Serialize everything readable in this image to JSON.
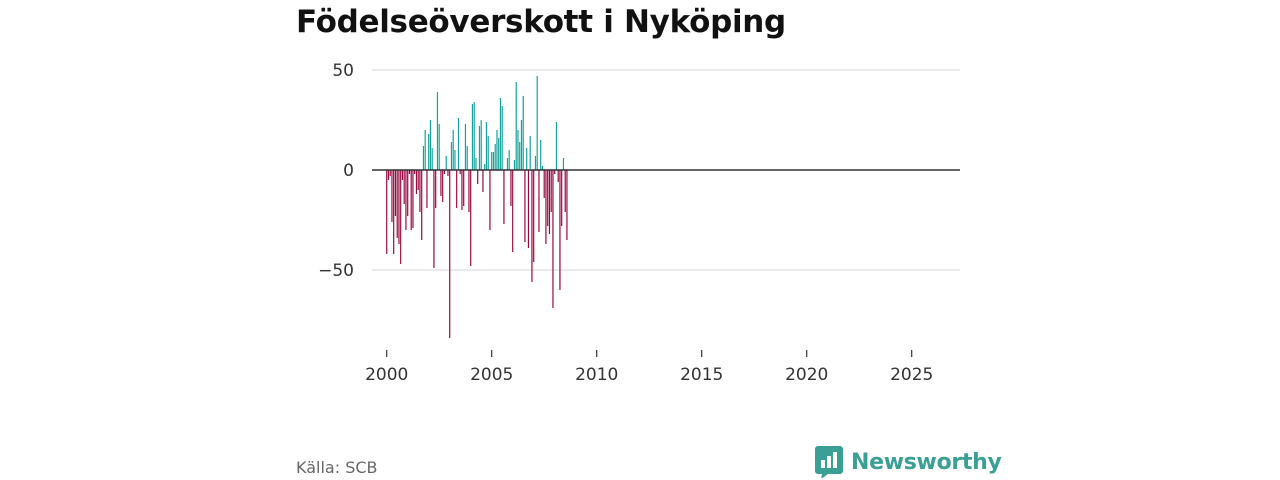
{
  "title": "Födelseöverskott i Nyköping",
  "source": "Källa: SCB",
  "brand": "Newsworthy",
  "colors": {
    "positive": "#14a39a",
    "negative": "#96093f",
    "grid": "#dddddd",
    "zero_line": "#333333",
    "brand": "#3a9f94"
  },
  "chart_data": {
    "type": "bar",
    "title": "Födelseöverskott i Nyköping",
    "xlabel": "",
    "ylabel": "",
    "frequency": "monthly",
    "start": "2000-01",
    "xlim": [
      1999.3,
      2027.3
    ],
    "ylim": [
      -90,
      55
    ],
    "yticks": [
      50,
      0,
      -50
    ],
    "ytick_labels": [
      "50",
      "0",
      "−50"
    ],
    "xticks": [
      2000,
      2005,
      2010,
      2015,
      2020,
      2025
    ],
    "xtick_labels": [
      "2000",
      "2005",
      "2010",
      "2015",
      "2020",
      "2025"
    ],
    "values": [
      -42,
      -5,
      -3,
      -26,
      -42,
      -23,
      -34,
      -37,
      -47,
      -5,
      -17,
      -30,
      -23,
      -2,
      -30,
      -29,
      -2,
      -12,
      -10,
      -21,
      -35,
      12,
      20,
      -19,
      18,
      25,
      11,
      -49,
      -19,
      39,
      23,
      -13,
      -16,
      -2,
      7,
      -3,
      -84,
      14,
      20,
      10,
      -19,
      26,
      -2,
      -20,
      -18,
      23,
      12,
      -21,
      -48,
      33,
      34,
      6,
      -7,
      22,
      25,
      -11,
      3,
      24,
      17,
      -30,
      9,
      9,
      13,
      20,
      16,
      36,
      32,
      -27,
      0,
      6,
      10,
      -18,
      -41,
      5,
      44,
      20,
      14,
      25,
      37,
      -36,
      11,
      -39,
      17,
      -56,
      -46,
      7,
      47,
      -31,
      15,
      2,
      -14,
      -37,
      -28,
      -32,
      -21,
      -69,
      -2,
      24,
      -6,
      -60,
      -28,
      6,
      -21,
      -35
    ]
  }
}
